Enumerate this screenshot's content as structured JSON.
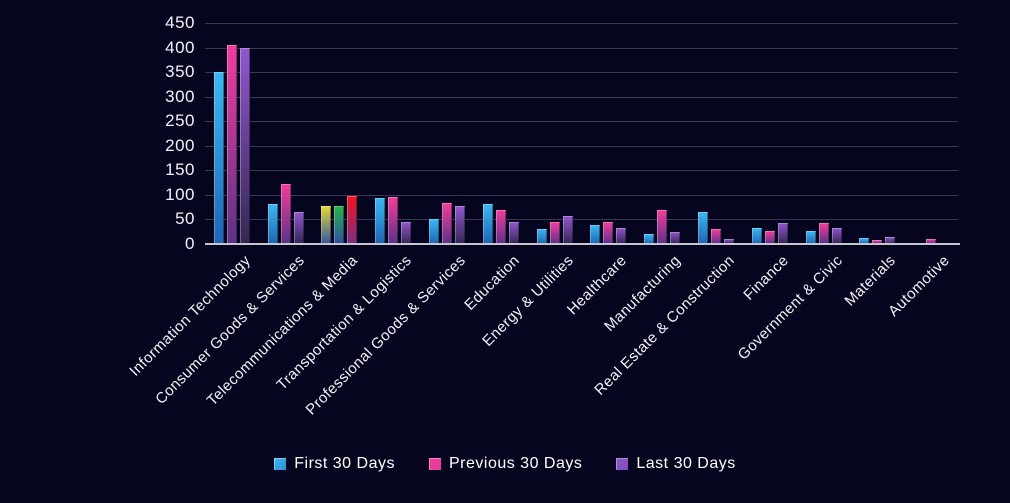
{
  "chart_data": {
    "type": "bar",
    "title": "",
    "xlabel": "",
    "ylabel": "",
    "categories": [
      "Information Technology",
      "Consumer Goods &  Services",
      "Telecommunications & Media",
      "Transportation & Logistics",
      "Professional Goods & Services",
      "Education",
      "Energy & Utilities",
      "Healthcare",
      "Manufacturing",
      "Real Estate & Construction",
      "Finance",
      "Government & Civic",
      "Materials",
      "Automotive"
    ],
    "series": [
      {
        "name": "First 30 Days",
        "values": [
          350,
          81,
          78,
          93,
          50,
          82,
          31,
          39,
          20,
          65,
          33,
          26,
          12,
          2
        ],
        "color_top": "#3BB9F1",
        "color_bottom": "#1E64B4",
        "legend_color": "#2E8FD6"
      },
      {
        "name": "Previous 30 Days",
        "values": [
          405,
          122,
          77,
          96,
          84,
          70,
          44,
          45,
          70,
          31,
          27,
          42,
          8,
          11
        ],
        "color_top": "#F43D9C",
        "color_bottom": "#5A3288",
        "legend_color": "#E8399A"
      },
      {
        "name": "Last 30 Days",
        "values": [
          400,
          66,
          98,
          45,
          78,
          45,
          58,
          33,
          24,
          11,
          43,
          33,
          14,
          1
        ],
        "color_top": "#9257CE",
        "color_bottom": "#342652",
        "legend_color": "#7C4FB6"
      }
    ],
    "special_bars": {
      "category_index": 2,
      "note": "Telecommunications & Media bars are colored yellow, green and red instead of the series colors",
      "colors": [
        {
          "top": "#E9D936",
          "bottom": "#33549E"
        },
        {
          "top": "#27B44B",
          "bottom": "#2F4DA0"
        },
        {
          "top": "#F5131F",
          "bottom": "#7A2E86"
        }
      ]
    },
    "y_axis": {
      "min": 0,
      "max": 450,
      "tick_step": 50,
      "tick_labels": [
        "0",
        "50",
        "100",
        "150",
        "200",
        "250",
        "300",
        "350",
        "400",
        "450"
      ]
    },
    "legend": {
      "position": "bottom",
      "entries": [
        "First 30 Days",
        "Previous 30 Days",
        "Last 30 Days"
      ]
    },
    "grid": true,
    "background_color": "#05051F",
    "gridline_color": "#383852",
    "baseline_color": "#C6C6D2",
    "axis_text_color": "#F2F2F7"
  }
}
